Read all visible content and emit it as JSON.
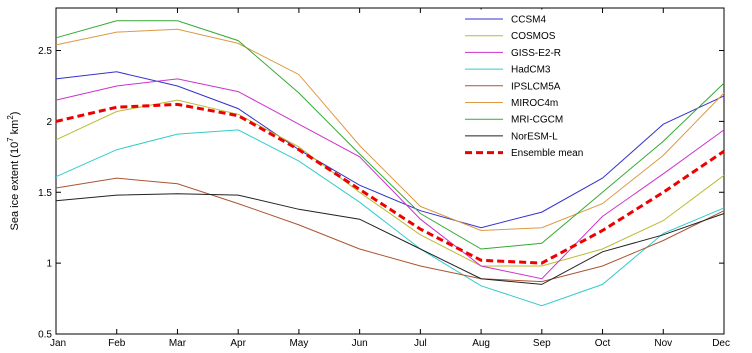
{
  "chart_data": {
    "type": "line",
    "categories": [
      "Jan",
      "Feb",
      "Mar",
      "Apr",
      "May",
      "Jun",
      "Jul",
      "Aug",
      "Sep",
      "Oct",
      "Nov",
      "Dec"
    ],
    "ylim": [
      0.5,
      2.8
    ],
    "yticks": [
      "0.5",
      "1",
      "1.5",
      "2",
      "2.5"
    ],
    "ytick_values": [
      0.5,
      1,
      1.5,
      2,
      2.5
    ],
    "ylabel_base": "Sea ice extent (10",
    "ylabel_exp1": "7",
    "ylabel_mid": " km",
    "ylabel_exp2": "2",
    "ylabel_end": ")",
    "grid": false,
    "legend_position": "top-right",
    "series": [
      {
        "name": "CCSM4",
        "color": "#3333cc",
        "dashed": false,
        "values": [
          2.3,
          2.35,
          2.25,
          2.09,
          1.8,
          1.55,
          1.37,
          1.25,
          1.36,
          1.6,
          1.98,
          2.18
        ]
      },
      {
        "name": "COSMOS",
        "color": "#bbbb33",
        "dashed": false,
        "values": [
          1.87,
          2.07,
          2.15,
          2.05,
          1.82,
          1.5,
          1.2,
          0.98,
          0.98,
          1.1,
          1.3,
          1.62
        ]
      },
      {
        "name": "GISS-E2-R",
        "color": "#cc33cc",
        "dashed": false,
        "values": [
          2.15,
          2.25,
          2.3,
          2.21,
          1.98,
          1.75,
          1.31,
          0.98,
          0.89,
          1.33,
          1.63,
          1.94
        ]
      },
      {
        "name": "HadCM3",
        "color": "#33cccc",
        "dashed": false,
        "values": [
          1.61,
          1.8,
          1.91,
          1.94,
          1.72,
          1.43,
          1.1,
          0.84,
          0.7,
          0.85,
          1.21,
          1.39
        ]
      },
      {
        "name": "IPSLCM5A",
        "color": "#aa5533",
        "dashed": false,
        "values": [
          1.53,
          1.6,
          1.56,
          1.42,
          1.27,
          1.1,
          0.98,
          0.89,
          0.87,
          0.98,
          1.16,
          1.37
        ]
      },
      {
        "name": "MIROC4m",
        "color": "#dd9944",
        "dashed": false,
        "values": [
          2.54,
          2.63,
          2.65,
          2.55,
          2.33,
          1.83,
          1.4,
          1.23,
          1.25,
          1.42,
          1.76,
          2.2
        ]
      },
      {
        "name": "MRI-CGCM",
        "color": "#33aa33",
        "dashed": false,
        "values": [
          2.59,
          2.71,
          2.71,
          2.57,
          2.2,
          1.77,
          1.35,
          1.1,
          1.14,
          1.5,
          1.86,
          2.27
        ]
      },
      {
        "name": "NorESM-L",
        "color": "#222222",
        "dashed": false,
        "values": [
          1.44,
          1.48,
          1.49,
          1.48,
          1.38,
          1.31,
          1.1,
          0.89,
          0.85,
          1.08,
          1.2,
          1.35
        ]
      },
      {
        "name": "Ensemble mean",
        "color": "#ee0000",
        "dashed": true,
        "values": [
          2.0,
          2.1,
          2.12,
          2.04,
          1.8,
          1.52,
          1.24,
          1.02,
          1.0,
          1.23,
          1.5,
          1.79
        ]
      }
    ]
  }
}
